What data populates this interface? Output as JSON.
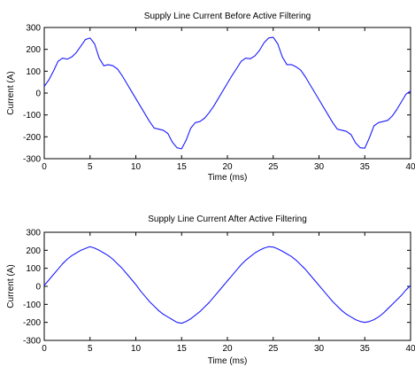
{
  "chart_data": [
    {
      "type": "line",
      "title": "Supply Line Current Before Active Filtering",
      "xlabel": "Time (ms)",
      "ylabel": "Current (A)",
      "xlim": [
        0,
        40
      ],
      "ylim": [
        -300,
        300
      ],
      "xticks": [
        "0",
        "5",
        "10",
        "15",
        "20",
        "25",
        "30",
        "35",
        "40"
      ],
      "yticks": [
        "300",
        "200",
        "100",
        "0",
        "-100",
        "-200",
        "-300"
      ],
      "grid": false,
      "series": [
        {
          "color": "#1a1aff",
          "x": [
            0,
            0.5,
            1,
            1.5,
            2,
            2.5,
            3,
            3.5,
            4,
            4.5,
            5,
            5.5,
            6,
            6.5,
            7,
            7.5,
            8,
            8.5,
            9,
            9.5,
            10,
            10.5,
            11,
            11.5,
            12,
            12.5,
            13,
            13.5,
            14,
            14.5,
            15,
            15.5,
            16,
            16.5,
            17,
            17.5,
            18,
            18.5,
            19,
            19.5,
            20,
            20.5,
            21,
            21.5,
            22,
            22.5,
            23,
            23.5,
            24,
            24.5,
            25,
            25.5,
            26,
            26.5,
            27,
            27.5,
            28,
            28.5,
            29,
            29.5,
            30,
            30.5,
            31,
            31.5,
            32,
            32.5,
            33,
            33.5,
            34,
            34.5,
            35,
            35.5,
            36,
            36.5,
            37,
            37.5,
            38,
            38.5,
            39,
            39.5,
            40
          ],
          "y": [
            30,
            60,
            100,
            145,
            160,
            155,
            165,
            185,
            215,
            245,
            252,
            225,
            160,
            125,
            130,
            125,
            110,
            80,
            45,
            10,
            -25,
            -60,
            -95,
            -130,
            -160,
            -165,
            -170,
            -185,
            -225,
            -250,
            -255,
            -215,
            -160,
            -135,
            -130,
            -115,
            -90,
            -60,
            -25,
            10,
            45,
            80,
            112,
            145,
            160,
            157,
            170,
            195,
            230,
            252,
            255,
            225,
            165,
            130,
            130,
            120,
            105,
            75,
            40,
            5,
            -30,
            -65,
            -100,
            -135,
            -165,
            -170,
            -175,
            -190,
            -228,
            -250,
            -252,
            -205,
            -150,
            -135,
            -130,
            -125,
            -105,
            -75,
            -40,
            -5,
            10
          ]
        }
      ]
    },
    {
      "type": "line",
      "title": "Supply Line Current After Active Filtering",
      "xlabel": "Time (ms)",
      "ylabel": "Current (A)",
      "xlim": [
        0,
        40
      ],
      "ylim": [
        -300,
        300
      ],
      "xticks": [
        "0",
        "5",
        "10",
        "15",
        "20",
        "25",
        "30",
        "35",
        "40"
      ],
      "yticks": [
        "300",
        "200",
        "100",
        "0",
        "-100",
        "-200",
        "-300"
      ],
      "grid": false,
      "series": [
        {
          "color": "#1a1aff",
          "x": [
            0,
            0.5,
            1,
            1.5,
            2,
            2.5,
            3,
            3.5,
            4,
            4.5,
            5,
            5.5,
            6,
            6.5,
            7,
            7.5,
            8,
            8.5,
            9,
            9.5,
            10,
            10.5,
            11,
            11.5,
            12,
            12.5,
            13,
            13.5,
            14,
            14.5,
            15,
            15.5,
            16,
            16.5,
            17,
            17.5,
            18,
            18.5,
            19,
            19.5,
            20,
            20.5,
            21,
            21.5,
            22,
            22.5,
            23,
            23.5,
            24,
            24.5,
            25,
            25.5,
            26,
            26.5,
            27,
            27.5,
            28,
            28.5,
            29,
            29.5,
            30,
            30.5,
            31,
            31.5,
            32,
            32.5,
            33,
            33.5,
            34,
            34.5,
            35,
            35.5,
            36,
            36.5,
            37,
            37.5,
            38,
            38.5,
            39,
            39.5,
            40
          ],
          "y": [
            5,
            35,
            65,
            95,
            125,
            150,
            170,
            185,
            200,
            210,
            220,
            212,
            200,
            185,
            170,
            150,
            125,
            100,
            70,
            40,
            10,
            -25,
            -55,
            -85,
            -110,
            -135,
            -155,
            -170,
            -185,
            -200,
            -205,
            -195,
            -180,
            -160,
            -140,
            -115,
            -90,
            -60,
            -30,
            0,
            30,
            60,
            90,
            120,
            145,
            165,
            185,
            200,
            212,
            220,
            218,
            208,
            195,
            180,
            165,
            145,
            120,
            95,
            65,
            35,
            5,
            -25,
            -55,
            -85,
            -110,
            -135,
            -155,
            -170,
            -185,
            -195,
            -200,
            -195,
            -185,
            -170,
            -150,
            -125,
            -100,
            -75,
            -50,
            -20,
            5
          ]
        }
      ]
    }
  ]
}
